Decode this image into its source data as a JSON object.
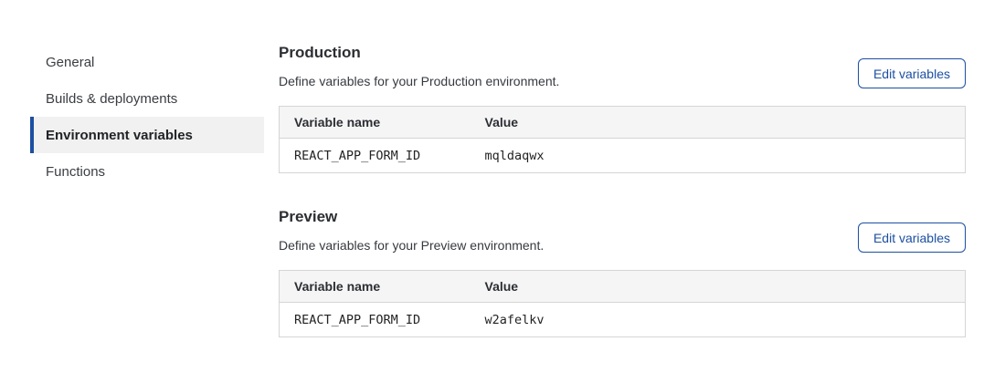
{
  "sidebar": {
    "items": [
      {
        "label": "General",
        "selected": false
      },
      {
        "label": "Builds & deployments",
        "selected": false
      },
      {
        "label": "Environment variables",
        "selected": true
      },
      {
        "label": "Functions",
        "selected": false
      }
    ]
  },
  "sections": [
    {
      "title": "Production",
      "description": "Define variables for your Production environment.",
      "button_label": "Edit variables",
      "table": {
        "columns": [
          "Variable name",
          "Value"
        ],
        "rows": [
          {
            "name": "REACT_APP_FORM_ID",
            "value": "mqldaqwx"
          }
        ]
      }
    },
    {
      "title": "Preview",
      "description": "Define variables for your Preview environment.",
      "button_label": "Edit variables",
      "table": {
        "columns": [
          "Variable name",
          "Value"
        ],
        "rows": [
          {
            "name": "REACT_APP_FORM_ID",
            "value": "w2afelkv"
          }
        ]
      }
    }
  ],
  "colors": {
    "accent_blue": "#1c4fa0",
    "selected_bg": "#f1f1f1",
    "table_border": "#d5d5d5",
    "table_header_bg": "#f5f5f5",
    "text_primary": "#2c2e33",
    "text_secondary": "#36393f"
  }
}
